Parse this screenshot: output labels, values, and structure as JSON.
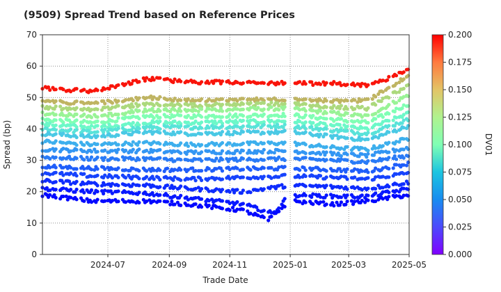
{
  "chart_data": {
    "type": "scatter",
    "title": "(9509)   Spread Trend based on Reference Prices",
    "xlabel": "Trade Date",
    "ylabel": "Spread (bp)",
    "colorbar_label": "DV01",
    "ylim": [
      0,
      70
    ],
    "yticks": [
      0,
      10,
      20,
      30,
      40,
      50,
      60,
      70
    ],
    "xlim": [
      "2024-04-26",
      "2025-05-01"
    ],
    "xticks": [
      "2024-07",
      "2024-09",
      "2024-11",
      "2025-01",
      "2025-03",
      "2025-05"
    ],
    "colorbar_range": [
      0.0,
      0.2
    ],
    "colorbar_ticks": [
      "0.000",
      "0.025",
      "0.050",
      "0.075",
      "0.100",
      "0.125",
      "0.150",
      "0.175",
      "0.200"
    ],
    "colormap": "rainbow",
    "grid": true,
    "series_curves": [
      {
        "dv01": 0.195,
        "points": [
          [
            "2024-04-26",
            53
          ],
          [
            "2024-06-15",
            52
          ],
          [
            "2024-08-10",
            56
          ],
          [
            "2024-09-20",
            55
          ],
          [
            "2024-12-31",
            54.5
          ],
          [
            "2025-02-15",
            54.5
          ],
          [
            "2025-03-20",
            54
          ],
          [
            "2025-04-10",
            56
          ],
          [
            "2025-05-01",
            59
          ]
        ]
      },
      {
        "dv01": 0.15,
        "points": [
          [
            "2024-04-26",
            49
          ],
          [
            "2024-06-15",
            48
          ],
          [
            "2024-08-10",
            50
          ],
          [
            "2024-09-20",
            49
          ],
          [
            "2024-12-31",
            49.5
          ],
          [
            "2025-02-15",
            49
          ],
          [
            "2025-03-20",
            49
          ],
          [
            "2025-05-01",
            57
          ]
        ]
      },
      {
        "dv01": 0.135,
        "points": [
          [
            "2024-04-26",
            47
          ],
          [
            "2024-06-15",
            46
          ],
          [
            "2024-08-10",
            48
          ],
          [
            "2024-09-20",
            47.5
          ],
          [
            "2024-12-31",
            48
          ],
          [
            "2025-02-15",
            47
          ],
          [
            "2025-03-20",
            46.5
          ],
          [
            "2025-05-01",
            54
          ]
        ]
      },
      {
        "dv01": 0.12,
        "points": [
          [
            "2024-04-26",
            45
          ],
          [
            "2024-06-15",
            44
          ],
          [
            "2024-08-10",
            46
          ],
          [
            "2024-09-20",
            46
          ],
          [
            "2024-12-31",
            46.5
          ],
          [
            "2025-02-15",
            45
          ],
          [
            "2025-03-20",
            44
          ],
          [
            "2025-05-01",
            51
          ]
        ]
      },
      {
        "dv01": 0.1,
        "points": [
          [
            "2024-04-26",
            43
          ],
          [
            "2024-06-15",
            42
          ],
          [
            "2024-08-10",
            44
          ],
          [
            "2024-09-20",
            44
          ],
          [
            "2024-12-31",
            44.5
          ],
          [
            "2025-02-15",
            43
          ],
          [
            "2025-03-20",
            42
          ],
          [
            "2025-05-01",
            48
          ]
        ]
      },
      {
        "dv01": 0.085,
        "points": [
          [
            "2024-04-26",
            41.5
          ],
          [
            "2024-06-15",
            40.5
          ],
          [
            "2024-08-10",
            42
          ],
          [
            "2024-09-20",
            42
          ],
          [
            "2024-12-31",
            42.5
          ],
          [
            "2025-02-15",
            41
          ],
          [
            "2025-03-20",
            40
          ],
          [
            "2025-05-01",
            45
          ]
        ]
      },
      {
        "dv01": 0.07,
        "points": [
          [
            "2024-04-26",
            40
          ],
          [
            "2024-06-15",
            39
          ],
          [
            "2024-08-10",
            40.5
          ],
          [
            "2024-09-20",
            40.5
          ],
          [
            "2024-12-31",
            41
          ],
          [
            "2025-02-15",
            39.5
          ],
          [
            "2025-03-20",
            38.5
          ],
          [
            "2025-05-01",
            43
          ]
        ]
      },
      {
        "dv01": 0.058,
        "points": [
          [
            "2024-04-26",
            38.5
          ],
          [
            "2024-06-15",
            37.5
          ],
          [
            "2024-08-10",
            39
          ],
          [
            "2024-09-20",
            38.5
          ],
          [
            "2024-12-31",
            39
          ],
          [
            "2025-02-15",
            37.5
          ],
          [
            "2025-03-20",
            36.5
          ],
          [
            "2025-05-01",
            41
          ]
        ]
      },
      {
        "dv01": 0.048,
        "points": [
          [
            "2024-04-26",
            36
          ],
          [
            "2024-06-15",
            35
          ],
          [
            "2024-08-10",
            35.5
          ],
          [
            "2024-09-20",
            35
          ],
          [
            "2024-12-31",
            35.5
          ],
          [
            "2025-02-15",
            34
          ],
          [
            "2025-03-20",
            33.5
          ],
          [
            "2025-05-01",
            37
          ]
        ]
      },
      {
        "dv01": 0.04,
        "points": [
          [
            "2024-04-26",
            33.5
          ],
          [
            "2024-06-15",
            33
          ],
          [
            "2024-08-10",
            33
          ],
          [
            "2024-09-20",
            32.5
          ],
          [
            "2024-12-31",
            33
          ],
          [
            "2025-02-15",
            32
          ],
          [
            "2025-03-20",
            31.5
          ],
          [
            "2025-05-01",
            34
          ]
        ]
      },
      {
        "dv01": 0.032,
        "points": [
          [
            "2024-04-26",
            31
          ],
          [
            "2024-06-15",
            30.5
          ],
          [
            "2024-08-10",
            30.5
          ],
          [
            "2024-09-20",
            30
          ],
          [
            "2024-12-31",
            30.5
          ],
          [
            "2025-02-15",
            30
          ],
          [
            "2025-03-20",
            29.5
          ],
          [
            "2025-05-01",
            31.5
          ]
        ]
      },
      {
        "dv01": 0.024,
        "points": [
          [
            "2024-04-26",
            28
          ],
          [
            "2024-06-15",
            27.5
          ],
          [
            "2024-08-10",
            27
          ],
          [
            "2024-09-20",
            27
          ],
          [
            "2024-12-31",
            27.5
          ],
          [
            "2025-02-15",
            27
          ],
          [
            "2025-03-20",
            26.5
          ],
          [
            "2025-05-01",
            29
          ]
        ]
      },
      {
        "dv01": 0.017,
        "points": [
          [
            "2024-04-26",
            26
          ],
          [
            "2024-06-15",
            25
          ],
          [
            "2024-08-10",
            24.5
          ],
          [
            "2024-09-20",
            24
          ],
          [
            "2024-12-31",
            25
          ],
          [
            "2025-02-15",
            24.5
          ],
          [
            "2025-03-20",
            24
          ],
          [
            "2025-05-01",
            26
          ]
        ]
      },
      {
        "dv01": 0.011,
        "points": [
          [
            "2024-04-26",
            23.5
          ],
          [
            "2024-06-15",
            22.5
          ],
          [
            "2024-08-10",
            22
          ],
          [
            "2024-09-20",
            21
          ],
          [
            "2024-11-15",
            20
          ],
          [
            "2024-12-31",
            22
          ],
          [
            "2025-02-15",
            21.5
          ],
          [
            "2025-03-20",
            21
          ],
          [
            "2025-05-01",
            23
          ]
        ]
      },
      {
        "dv01": 0.006,
        "points": [
          [
            "2024-04-26",
            21
          ],
          [
            "2024-06-15",
            20
          ],
          [
            "2024-08-10",
            19.5
          ],
          [
            "2024-09-20",
            18
          ],
          [
            "2024-11-15",
            16
          ],
          [
            "2024-12-15",
            13
          ],
          [
            "2024-12-31",
            19
          ],
          [
            "2025-02-15",
            18.5
          ],
          [
            "2025-03-20",
            18.5
          ],
          [
            "2025-05-01",
            21
          ]
        ]
      },
      {
        "dv01": 0.002,
        "points": [
          [
            "2024-04-26",
            19
          ],
          [
            "2024-06-15",
            17
          ],
          [
            "2024-08-10",
            17
          ],
          [
            "2024-09-20",
            16
          ],
          [
            "2024-11-15",
            14
          ],
          [
            "2024-12-10",
            11
          ],
          [
            "2024-12-31",
            17
          ],
          [
            "2025-02-15",
            16
          ],
          [
            "2025-03-20",
            17
          ],
          [
            "2025-05-01",
            19
          ]
        ]
      }
    ]
  }
}
